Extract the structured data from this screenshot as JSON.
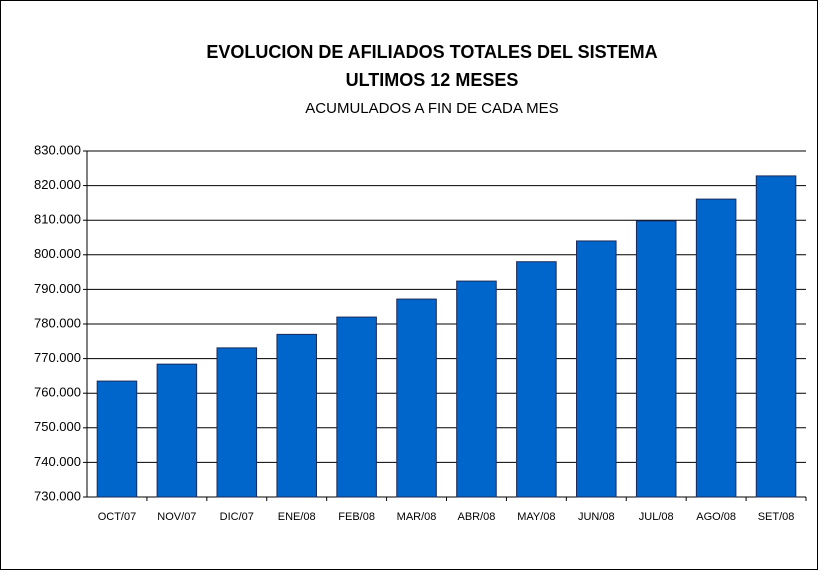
{
  "chart_data": {
    "type": "bar",
    "title": "EVOLUCION DE AFILIADOS TOTALES DEL SISTEMA",
    "subtitle": "ULTIMOS 12 MESES",
    "annotation": "ACUMULADOS A FIN DE CADA MES",
    "categories": [
      "OCT/07",
      "NOV/07",
      "DIC/07",
      "ENE/08",
      "FEB/08",
      "MAR/08",
      "ABR/08",
      "MAY/08",
      "JUN/08",
      "JUL/08",
      "AGO/08",
      "SET/08"
    ],
    "values": [
      763500,
      768400,
      773100,
      777000,
      782000,
      787200,
      792400,
      798000,
      804000,
      809800,
      816100,
      822800
    ],
    "color": "#0066cc",
    "ylim": [
      730000,
      830000
    ],
    "yticks": [
      {
        "value": 730000,
        "label": "730.000"
      },
      {
        "value": 740000,
        "label": "740.000"
      },
      {
        "value": 750000,
        "label": "750.000"
      },
      {
        "value": 760000,
        "label": "760.000"
      },
      {
        "value": 770000,
        "label": "770.000"
      },
      {
        "value": 780000,
        "label": "780.000"
      },
      {
        "value": 790000,
        "label": "790.000"
      },
      {
        "value": 800000,
        "label": "800.000"
      },
      {
        "value": 810000,
        "label": "810.000"
      },
      {
        "value": 820000,
        "label": "820.000"
      },
      {
        "value": 830000,
        "label": "830.000"
      }
    ],
    "grid": true
  }
}
